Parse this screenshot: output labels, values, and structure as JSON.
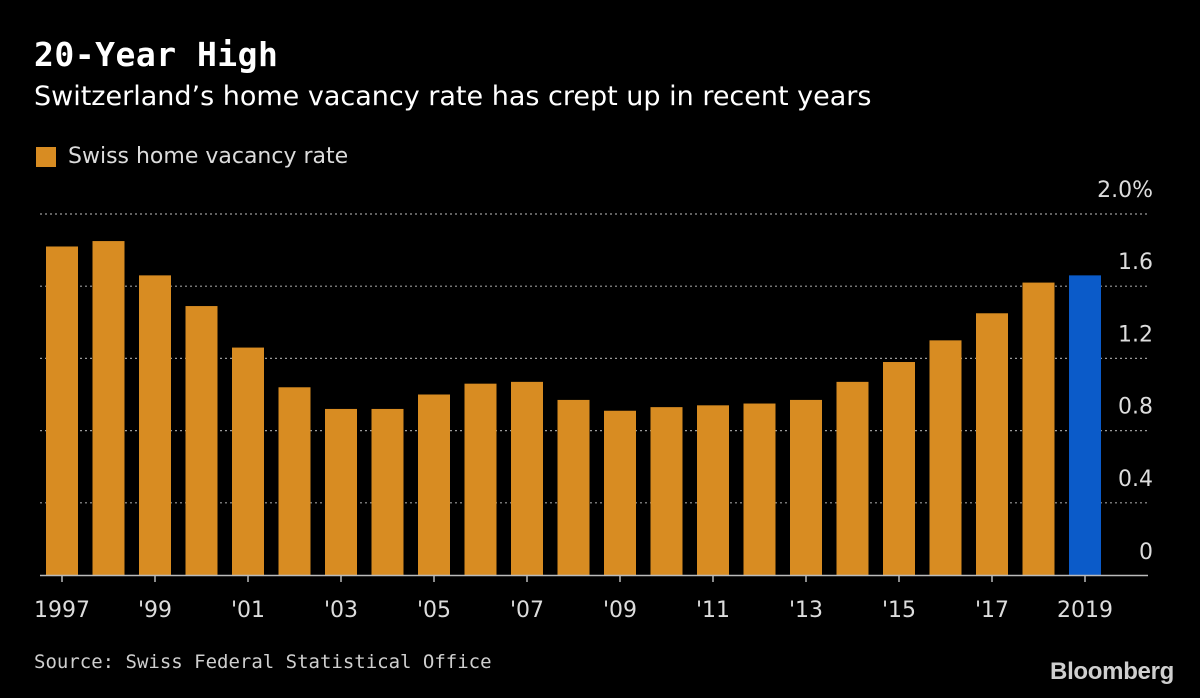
{
  "title": "20-Year High",
  "subtitle": "Switzerland’s home vacancy rate has crept up in recent years",
  "legend": {
    "label": "Swiss home vacancy rate"
  },
  "source": "Source: Swiss Federal Statistical Office",
  "brand": "Bloomberg",
  "colors": {
    "bar": "#d88c22",
    "highlight": "#0b5bc9",
    "background": "#000000",
    "grid": "#9a9a9a"
  },
  "chart_data": {
    "type": "bar",
    "categories": [
      "1997",
      "1998",
      "1999",
      "2000",
      "2001",
      "2002",
      "2003",
      "2004",
      "2005",
      "2006",
      "2007",
      "2008",
      "2009",
      "2010",
      "2011",
      "2012",
      "2013",
      "2014",
      "2015",
      "2016",
      "2017",
      "2018",
      "2019"
    ],
    "values": [
      1.82,
      1.85,
      1.66,
      1.49,
      1.26,
      1.04,
      0.92,
      0.92,
      1.0,
      1.06,
      1.07,
      0.97,
      0.91,
      0.93,
      0.94,
      0.95,
      0.97,
      1.07,
      1.18,
      1.3,
      1.45,
      1.62,
      1.66
    ],
    "highlight_index": 22,
    "xtick_labels": [
      "1997",
      "",
      "'99",
      "",
      "'01",
      "",
      "'03",
      "",
      "'05",
      "",
      "'07",
      "",
      "'09",
      "",
      "'11",
      "",
      "'13",
      "",
      "'15",
      "",
      "'17",
      "",
      "2019"
    ],
    "yticks": [
      0,
      0.4,
      0.8,
      1.2,
      1.6,
      2.0
    ],
    "ytick_labels": [
      "0",
      "0.4",
      "0.8",
      "1.2",
      "1.6",
      "2.0%"
    ],
    "ylim": [
      0,
      2.0
    ],
    "grid": true,
    "y_axis_side": "right",
    "legend_placement": "top-left"
  }
}
